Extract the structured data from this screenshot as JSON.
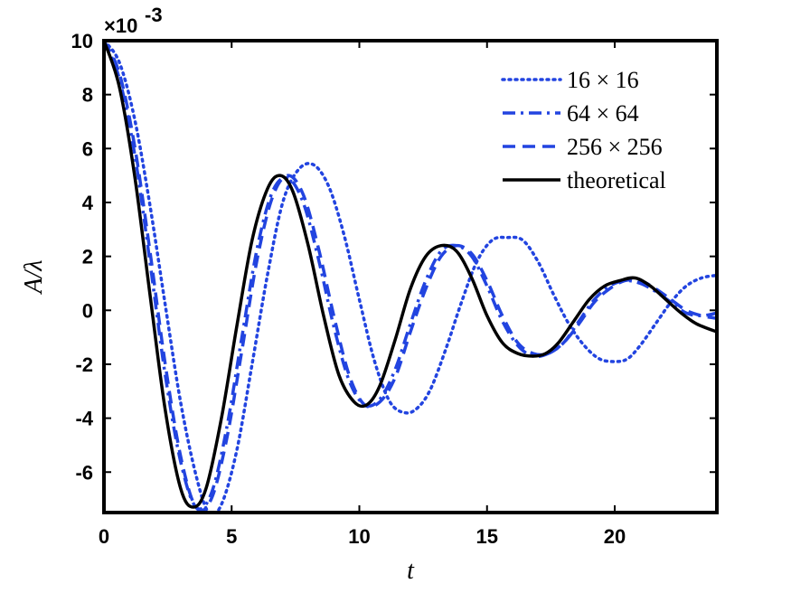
{
  "chart_data": {
    "type": "line",
    "title": "",
    "xlabel": "t",
    "ylabel": "A/λ",
    "xlim": [
      0,
      24
    ],
    "ylim": [
      -7.5,
      10
    ],
    "y_scale_label": "×10-3",
    "x_ticks": [
      0,
      5,
      10,
      15,
      20
    ],
    "x_tick_labels": [
      "0",
      "5",
      "10",
      "15",
      "20"
    ],
    "y_ticks": [
      10,
      8,
      6,
      4,
      2,
      0,
      -2,
      -4,
      -6
    ],
    "y_tick_labels": [
      "10",
      "8",
      "6",
      "4",
      "2",
      "0",
      "-2",
      "-4",
      "-6"
    ],
    "grid": false,
    "legend_position": "top-right",
    "series": [
      {
        "name": "16 × 16",
        "style": "dotted",
        "color": "#2244e0",
        "x": [
          0,
          0.6,
          1.2,
          1.8,
          2.4,
          3.0,
          3.6,
          4.1,
          4.6,
          5.2,
          5.8,
          6.4,
          7.0,
          7.6,
          8.2,
          8.8,
          9.4,
          10.0,
          10.6,
          11.2,
          11.8,
          12.3,
          12.8,
          13.4,
          14.0,
          14.6,
          15.2,
          15.8,
          16.4,
          17.0,
          17.6,
          18.2,
          18.8,
          19.4,
          20.0,
          20.5,
          21.0,
          21.6,
          22.2,
          22.8,
          23.4,
          24.0
        ],
        "y": [
          10.0,
          9.2,
          7.1,
          3.9,
          0.2,
          -3.4,
          -6.1,
          -7.5,
          -7.2,
          -5.2,
          -2.0,
          1.3,
          4.0,
          5.2,
          5.4,
          4.6,
          2.8,
          0.4,
          -1.9,
          -3.4,
          -3.8,
          -3.6,
          -2.9,
          -1.4,
          0.3,
          1.8,
          2.6,
          2.7,
          2.6,
          1.8,
          0.6,
          -0.5,
          -1.3,
          -1.8,
          -1.9,
          -1.8,
          -1.3,
          -0.5,
          0.3,
          0.9,
          1.2,
          1.3
        ]
      },
      {
        "name": "64 × 64",
        "style": "dashdot",
        "color": "#2244e0",
        "x": [
          0,
          0.6,
          1.2,
          1.8,
          2.4,
          3.0,
          3.6,
          4.2,
          4.8,
          5.4,
          6.0,
          6.6,
          7.2,
          7.8,
          8.4,
          9.0,
          9.6,
          10.2,
          10.8,
          11.4,
          12.0,
          12.6,
          13.2,
          13.8,
          14.4,
          15.0,
          15.6,
          16.2,
          16.8,
          17.4,
          18.0,
          18.6,
          19.2,
          19.8,
          20.4,
          21.0,
          21.6,
          22.2,
          22.8,
          23.4,
          24.0
        ],
        "y": [
          10.0,
          8.6,
          5.8,
          1.8,
          -2.4,
          -5.6,
          -7.3,
          -6.8,
          -4.4,
          -1.0,
          2.3,
          4.4,
          4.9,
          4.0,
          1.9,
          -0.6,
          -2.6,
          -3.5,
          -3.3,
          -2.2,
          -0.5,
          1.1,
          2.2,
          2.4,
          2.0,
          0.9,
          -0.4,
          -1.3,
          -1.7,
          -1.6,
          -1.2,
          -0.4,
          0.4,
          0.9,
          1.1,
          1.0,
          0.7,
          0.3,
          -0.1,
          -0.2,
          -0.1
        ]
      },
      {
        "name": "256 × 256",
        "style": "dashed",
        "color": "#2244e0",
        "x": [
          0,
          0.6,
          1.2,
          1.8,
          2.4,
          3.0,
          3.6,
          4.2,
          4.8,
          5.4,
          6.0,
          6.6,
          7.2,
          7.8,
          8.4,
          9.0,
          9.6,
          10.2,
          10.8,
          11.4,
          12.0,
          12.6,
          13.2,
          13.8,
          14.4,
          15.0,
          15.6,
          16.2,
          16.8,
          17.4,
          18.0,
          18.6,
          19.2,
          19.8,
          20.4,
          21.0,
          21.6,
          22.2,
          22.8,
          23.4,
          24.0
        ],
        "y": [
          10.0,
          8.8,
          6.1,
          2.2,
          -2.0,
          -5.4,
          -7.3,
          -7.0,
          -4.8,
          -1.5,
          1.9,
          4.2,
          5.0,
          4.3,
          2.3,
          -0.2,
          -2.4,
          -3.5,
          -3.4,
          -2.5,
          -0.8,
          0.8,
          2.0,
          2.4,
          2.1,
          1.1,
          -0.2,
          -1.2,
          -1.6,
          -1.6,
          -1.2,
          -0.5,
          0.3,
          0.8,
          1.1,
          1.1,
          0.8,
          0.4,
          0.0,
          -0.2,
          -0.3
        ]
      },
      {
        "name": "theoretical",
        "style": "solid",
        "color": "#000000",
        "x": [
          0,
          0.6,
          1.2,
          1.8,
          2.4,
          3.0,
          3.5,
          4.0,
          4.6,
          5.2,
          5.8,
          6.4,
          6.9,
          7.4,
          8.0,
          8.6,
          9.2,
          9.8,
          10.3,
          10.8,
          11.4,
          12.0,
          12.6,
          13.2,
          13.8,
          14.4,
          15.0,
          15.6,
          16.2,
          16.8,
          17.3,
          17.8,
          18.4,
          19.0,
          19.6,
          20.2,
          20.8,
          21.4,
          22.0,
          22.6,
          23.2,
          24.0
        ],
        "y": [
          10.0,
          8.3,
          5.0,
          0.6,
          -3.7,
          -6.6,
          -7.3,
          -6.6,
          -4.0,
          -0.6,
          2.6,
          4.5,
          5.0,
          4.4,
          2.4,
          -0.2,
          -2.4,
          -3.4,
          -3.5,
          -2.8,
          -1.1,
          0.8,
          2.0,
          2.4,
          2.2,
          1.2,
          -0.2,
          -1.2,
          -1.6,
          -1.7,
          -1.6,
          -1.2,
          -0.4,
          0.4,
          0.9,
          1.1,
          1.2,
          0.9,
          0.4,
          -0.1,
          -0.5,
          -0.8
        ]
      }
    ]
  }
}
